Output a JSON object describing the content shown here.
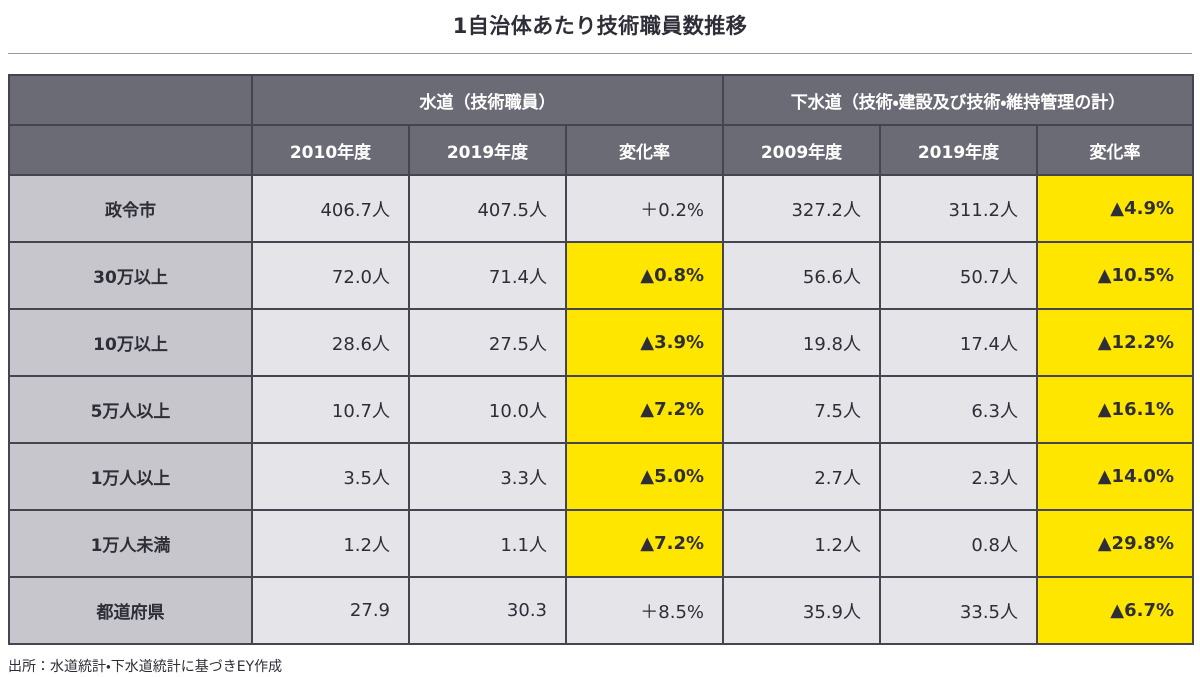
{
  "page": {
    "title": "1自治体あたり技術職員数推移",
    "source_note": "出所：水道統計・下水道統計に基づきEY作成"
  },
  "colors": {
    "header_bg": "#6b6b75",
    "label_bg": "#c6c6cc",
    "cell_bg": "#e4e4e9",
    "highlight_bg": "#ffe600",
    "border": "#45454f",
    "text": "#2e2e38",
    "header_text": "#ffffff",
    "divider": "#9898a0"
  },
  "chart_data": {
    "type": "table",
    "title": "1自治体あたり技術職員数推移",
    "column_groups": [
      "水道（技術職員）",
      "下水道（技術・建設及び技術・維持管理の計）"
    ],
    "columns": [
      "2010年度",
      "2019年度",
      "変化率",
      "2009年度",
      "2019年度",
      "変化率"
    ],
    "row_labels": [
      "政令市",
      "30万以上",
      "10万以上",
      "5万人以上",
      "1万人以上",
      "1万人未満",
      "都道府県"
    ],
    "rows": [
      {
        "label": "政令市",
        "cells": [
          {
            "text": "406.7人",
            "highlight": false
          },
          {
            "text": "407.5人",
            "highlight": false
          },
          {
            "text": "＋0.2%",
            "highlight": false
          },
          {
            "text": "327.2人",
            "highlight": false
          },
          {
            "text": "311.2人",
            "highlight": false
          },
          {
            "text": "▲4.9%",
            "highlight": true
          }
        ]
      },
      {
        "label": "30万以上",
        "cells": [
          {
            "text": "72.0人",
            "highlight": false
          },
          {
            "text": "71.4人",
            "highlight": false
          },
          {
            "text": "▲0.8%",
            "highlight": true
          },
          {
            "text": "56.6人",
            "highlight": false
          },
          {
            "text": "50.7人",
            "highlight": false
          },
          {
            "text": "▲10.5%",
            "highlight": true
          }
        ]
      },
      {
        "label": "10万以上",
        "cells": [
          {
            "text": "28.6人",
            "highlight": false
          },
          {
            "text": "27.5人",
            "highlight": false
          },
          {
            "text": "▲3.9%",
            "highlight": true
          },
          {
            "text": "19.8人",
            "highlight": false
          },
          {
            "text": "17.4人",
            "highlight": false
          },
          {
            "text": "▲12.2%",
            "highlight": true
          }
        ]
      },
      {
        "label": "5万人以上",
        "cells": [
          {
            "text": "10.7人",
            "highlight": false
          },
          {
            "text": "10.0人",
            "highlight": false
          },
          {
            "text": "▲7.2%",
            "highlight": true
          },
          {
            "text": "7.5人",
            "highlight": false
          },
          {
            "text": "6.3人",
            "highlight": false
          },
          {
            "text": "▲16.1%",
            "highlight": true
          }
        ]
      },
      {
        "label": "1万人以上",
        "cells": [
          {
            "text": "3.5人",
            "highlight": false
          },
          {
            "text": "3.3人",
            "highlight": false
          },
          {
            "text": "▲5.0%",
            "highlight": true
          },
          {
            "text": "2.7人",
            "highlight": false
          },
          {
            "text": "2.3人",
            "highlight": false
          },
          {
            "text": "▲14.0%",
            "highlight": true
          }
        ]
      },
      {
        "label": "1万人未満",
        "cells": [
          {
            "text": "1.2人",
            "highlight": false
          },
          {
            "text": "1.1人",
            "highlight": false
          },
          {
            "text": "▲7.2%",
            "highlight": true
          },
          {
            "text": "1.2人",
            "highlight": false
          },
          {
            "text": "0.8人",
            "highlight": false
          },
          {
            "text": "▲29.8%",
            "highlight": true
          }
        ]
      },
      {
        "label": "都道府県",
        "cells": [
          {
            "text": "27.9",
            "highlight": false
          },
          {
            "text": "30.3",
            "highlight": false
          },
          {
            "text": "＋8.5%",
            "highlight": false
          },
          {
            "text": "35.9人",
            "highlight": false
          },
          {
            "text": "33.5人",
            "highlight": false
          },
          {
            "text": "▲6.7%",
            "highlight": true
          }
        ]
      }
    ]
  }
}
